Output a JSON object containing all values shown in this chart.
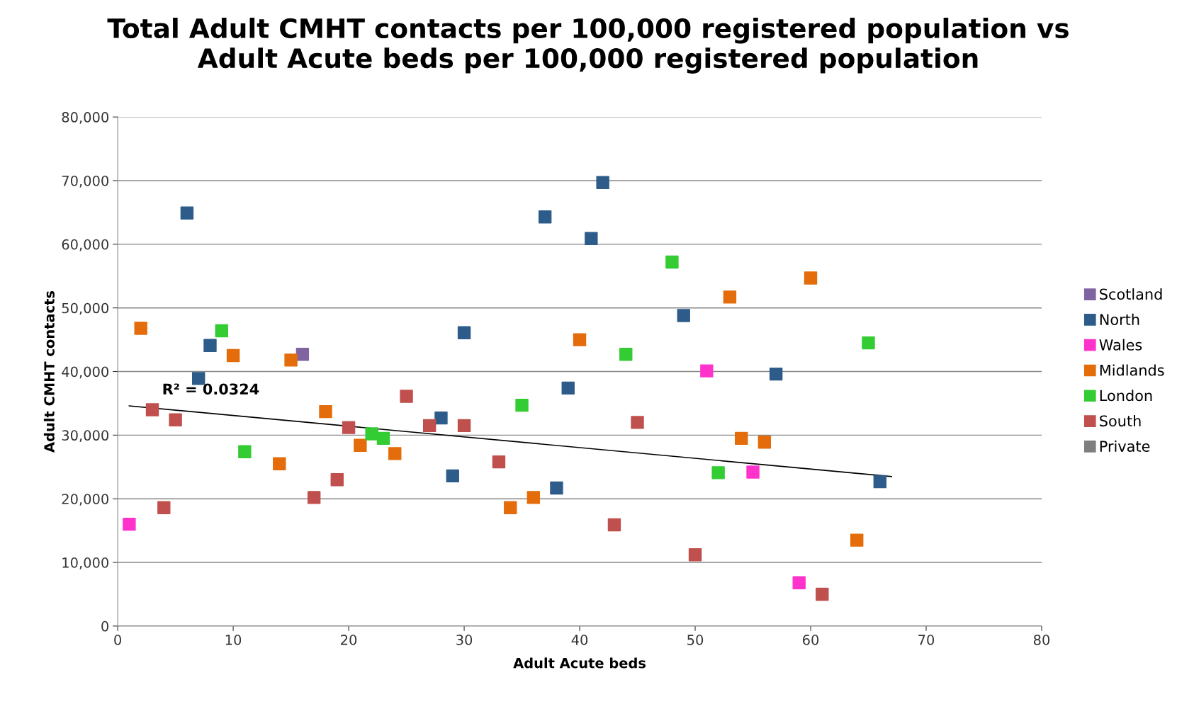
{
  "chart_data": {
    "type": "scatter",
    "title": "Total Adult CMHT contacts per 100,000 registered population vs\nAdult Acute beds per 100,000 registered population",
    "xlabel": "Adult Acute beds",
    "ylabel": "Adult CMHT contacts",
    "xlim": [
      0,
      80
    ],
    "xticks": [
      0,
      10,
      20,
      30,
      40,
      50,
      60,
      70,
      80
    ],
    "ylim": [
      0,
      80000
    ],
    "yticks": [
      {
        "value": 0,
        "label": "0"
      },
      {
        "value": 10000,
        "label": "10,000"
      },
      {
        "value": 20000,
        "label": "20,000"
      },
      {
        "value": 30000,
        "label": "30,000"
      },
      {
        "value": 40000,
        "label": "40,000"
      },
      {
        "value": 50000,
        "label": "50,000"
      },
      {
        "value": 60000,
        "label": "60,000"
      },
      {
        "value": 70000,
        "label": "70,000"
      },
      {
        "value": 80000,
        "label": "80,000"
      }
    ],
    "grid": "y",
    "legend": "right",
    "marker": "square",
    "annotations": [
      "R² = 0.0324"
    ],
    "series": [
      {
        "name": "Scotland",
        "color": "#8064a2",
        "x": [
          16
        ],
        "values": [
          42700
        ]
      },
      {
        "name": "North",
        "color": "#2e5c8a",
        "x": [
          6,
          42,
          37,
          41,
          8,
          7,
          30,
          28,
          29,
          38,
          39,
          49,
          57,
          66
        ],
        "values": [
          64900,
          69700,
          64300,
          60900,
          44100,
          38900,
          46100,
          32700,
          23600,
          21700,
          37400,
          48800,
          39600,
          22700
        ]
      },
      {
        "name": "Wales",
        "color": "#ff33cc",
        "x": [
          1,
          51,
          55,
          59
        ],
        "values": [
          16000,
          40100,
          24200,
          6800
        ]
      },
      {
        "name": "Midlands",
        "color": "#e46c0a",
        "x": [
          2,
          10,
          15,
          18,
          14,
          21,
          24,
          34,
          36,
          40,
          53,
          54,
          56,
          60,
          64
        ],
        "values": [
          46800,
          42500,
          41800,
          33700,
          25500,
          28400,
          27100,
          18600,
          20200,
          45000,
          51700,
          29500,
          28900,
          54700,
          13500
        ]
      },
      {
        "name": "London",
        "color": "#33cc33",
        "x": [
          9,
          11,
          22,
          23,
          35,
          44,
          48,
          52,
          65
        ],
        "values": [
          46400,
          27400,
          30200,
          29500,
          34700,
          42700,
          57200,
          24100,
          44500
        ]
      },
      {
        "name": "South",
        "color": "#c0504d",
        "x": [
          3,
          5,
          4,
          17,
          19,
          20,
          25,
          27,
          30,
          33,
          43,
          45,
          50,
          61
        ],
        "values": [
          34000,
          32400,
          18600,
          20200,
          23000,
          31200,
          36100,
          31500,
          31500,
          25800,
          15900,
          32000,
          11200,
          5000
        ]
      },
      {
        "name": "Private",
        "color": "#7f7f7f"
      },
      {
        "type": "line",
        "color": "#000000",
        "x": [
          1,
          67
        ],
        "values": [
          34600,
          23500
        ],
        "marker": "none"
      }
    ]
  }
}
